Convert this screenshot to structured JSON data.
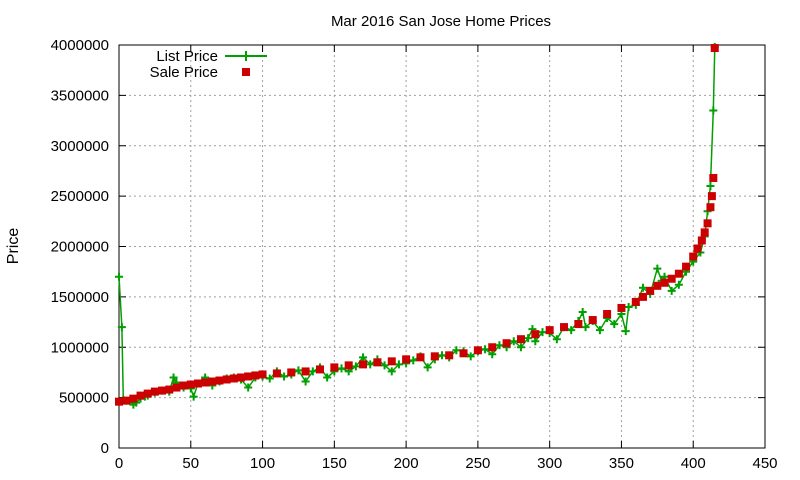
{
  "chart_data": {
    "type": "scatter",
    "title": "Mar 2016 San Jose Home Prices",
    "xlabel": "",
    "ylabel": "Price",
    "xlim": [
      0,
      450
    ],
    "ylim": [
      0,
      4000000
    ],
    "xticks": [
      0,
      50,
      100,
      150,
      200,
      250,
      300,
      350,
      400,
      450
    ],
    "yticks": [
      0,
      500000,
      1000000,
      1500000,
      2000000,
      2500000,
      3000000,
      3500000,
      4000000
    ],
    "grid": true,
    "legend_position": "top-left",
    "series": [
      {
        "name": "List Price",
        "style": "line+plus",
        "color": "#00a000",
        "points": [
          [
            0,
            1700000
          ],
          [
            2,
            1200000
          ],
          [
            3,
            480000
          ],
          [
            5,
            470000
          ],
          [
            8,
            470000
          ],
          [
            10,
            430000
          ],
          [
            12,
            450000
          ],
          [
            15,
            490000
          ],
          [
            18,
            510000
          ],
          [
            20,
            520000
          ],
          [
            25,
            550000
          ],
          [
            30,
            570000
          ],
          [
            35,
            560000
          ],
          [
            38,
            700000
          ],
          [
            40,
            650000
          ],
          [
            45,
            600000
          ],
          [
            50,
            590000
          ],
          [
            52,
            510000
          ],
          [
            55,
            640000
          ],
          [
            60,
            700000
          ],
          [
            65,
            620000
          ],
          [
            70,
            660000
          ],
          [
            75,
            690000
          ],
          [
            80,
            700000
          ],
          [
            85,
            680000
          ],
          [
            90,
            600000
          ],
          [
            95,
            700000
          ],
          [
            100,
            710000
          ],
          [
            105,
            690000
          ],
          [
            110,
            760000
          ],
          [
            115,
            710000
          ],
          [
            120,
            730000
          ],
          [
            125,
            770000
          ],
          [
            130,
            660000
          ],
          [
            135,
            760000
          ],
          [
            140,
            800000
          ],
          [
            145,
            700000
          ],
          [
            150,
            760000
          ],
          [
            155,
            790000
          ],
          [
            160,
            760000
          ],
          [
            165,
            810000
          ],
          [
            170,
            900000
          ],
          [
            175,
            830000
          ],
          [
            180,
            880000
          ],
          [
            185,
            820000
          ],
          [
            190,
            760000
          ],
          [
            195,
            830000
          ],
          [
            200,
            840000
          ],
          [
            205,
            870000
          ],
          [
            210,
            910000
          ],
          [
            215,
            800000
          ],
          [
            220,
            880000
          ],
          [
            225,
            920000
          ],
          [
            230,
            900000
          ],
          [
            235,
            970000
          ],
          [
            240,
            960000
          ],
          [
            245,
            910000
          ],
          [
            250,
            960000
          ],
          [
            255,
            980000
          ],
          [
            260,
            930000
          ],
          [
            265,
            1020000
          ],
          [
            270,
            1000000
          ],
          [
            275,
            1060000
          ],
          [
            280,
            1000000
          ],
          [
            285,
            1090000
          ],
          [
            288,
            1180000
          ],
          [
            290,
            1060000
          ],
          [
            295,
            1150000
          ],
          [
            300,
            1140000
          ],
          [
            305,
            1080000
          ],
          [
            310,
            1200000
          ],
          [
            315,
            1170000
          ],
          [
            320,
            1260000
          ],
          [
            323,
            1350000
          ],
          [
            325,
            1200000
          ],
          [
            330,
            1260000
          ],
          [
            335,
            1170000
          ],
          [
            340,
            1290000
          ],
          [
            345,
            1230000
          ],
          [
            350,
            1330000
          ],
          [
            353,
            1160000
          ],
          [
            355,
            1400000
          ],
          [
            360,
            1420000
          ],
          [
            365,
            1590000
          ],
          [
            370,
            1530000
          ],
          [
            375,
            1780000
          ],
          [
            378,
            1660000
          ],
          [
            380,
            1700000
          ],
          [
            385,
            1560000
          ],
          [
            390,
            1620000
          ],
          [
            395,
            1750000
          ],
          [
            400,
            1850000
          ],
          [
            405,
            1940000
          ],
          [
            408,
            2100000
          ],
          [
            410,
            2350000
          ],
          [
            412,
            2600000
          ],
          [
            414,
            3350000
          ],
          [
            415,
            3980000
          ]
        ]
      },
      {
        "name": "Sale Price",
        "style": "square",
        "color": "#cc0000",
        "points": [
          [
            0,
            460000
          ],
          [
            5,
            470000
          ],
          [
            10,
            490000
          ],
          [
            15,
            520000
          ],
          [
            20,
            540000
          ],
          [
            25,
            560000
          ],
          [
            30,
            570000
          ],
          [
            35,
            580000
          ],
          [
            40,
            600000
          ],
          [
            45,
            620000
          ],
          [
            50,
            630000
          ],
          [
            55,
            640000
          ],
          [
            60,
            650000
          ],
          [
            65,
            660000
          ],
          [
            70,
            670000
          ],
          [
            75,
            680000
          ],
          [
            80,
            690000
          ],
          [
            85,
            700000
          ],
          [
            90,
            710000
          ],
          [
            95,
            720000
          ],
          [
            100,
            730000
          ],
          [
            110,
            740000
          ],
          [
            120,
            750000
          ],
          [
            130,
            760000
          ],
          [
            140,
            780000
          ],
          [
            150,
            800000
          ],
          [
            160,
            820000
          ],
          [
            170,
            830000
          ],
          [
            180,
            850000
          ],
          [
            190,
            860000
          ],
          [
            200,
            880000
          ],
          [
            210,
            900000
          ],
          [
            220,
            910000
          ],
          [
            230,
            920000
          ],
          [
            240,
            940000
          ],
          [
            250,
            970000
          ],
          [
            260,
            1000000
          ],
          [
            270,
            1040000
          ],
          [
            280,
            1080000
          ],
          [
            290,
            1130000
          ],
          [
            300,
            1170000
          ],
          [
            310,
            1200000
          ],
          [
            320,
            1230000
          ],
          [
            330,
            1270000
          ],
          [
            340,
            1330000
          ],
          [
            350,
            1390000
          ],
          [
            360,
            1450000
          ],
          [
            365,
            1500000
          ],
          [
            370,
            1560000
          ],
          [
            375,
            1610000
          ],
          [
            380,
            1640000
          ],
          [
            385,
            1680000
          ],
          [
            390,
            1730000
          ],
          [
            395,
            1800000
          ],
          [
            400,
            1900000
          ],
          [
            403,
            1980000
          ],
          [
            406,
            2060000
          ],
          [
            408,
            2140000
          ],
          [
            410,
            2230000
          ],
          [
            412,
            2390000
          ],
          [
            413,
            2500000
          ],
          [
            414,
            2680000
          ],
          [
            415,
            3970000
          ]
        ]
      }
    ]
  }
}
